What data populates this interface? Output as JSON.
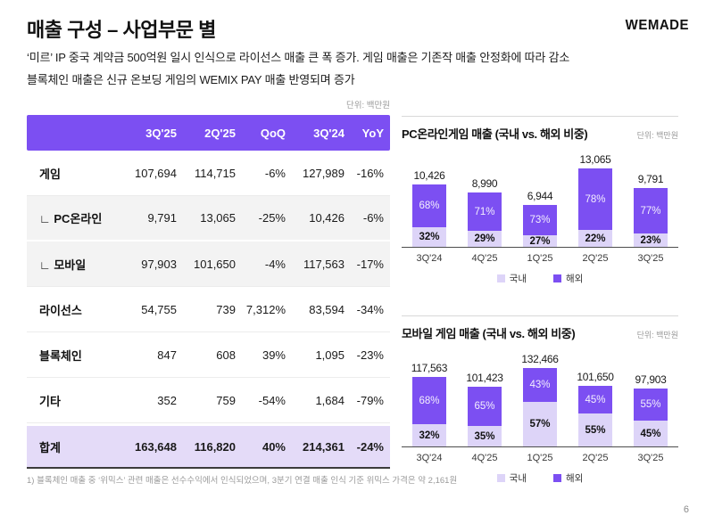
{
  "colors": {
    "accent": "#7C4FF2",
    "accent_light": "#DDD4F8",
    "total_row_bg": "#E4DBF8",
    "sub_row_bg": "#F3F3F3"
  },
  "header": {
    "title": "매출 구성 – 사업부문 별",
    "logo": "WEMADE"
  },
  "summary": {
    "line1": "‘미르’ IP 중국 계약금 500억원 일시 인식으로 라이선스 매출 큰 폭 증가. 게임 매출은 기존작 매출 안정화에 따라 감소",
    "line2": "블록체인 매출은 신규 온보딩 게임의 WEMIX PAY 매출 반영되며 증가"
  },
  "table": {
    "unit": "단위: 백만원",
    "columns": [
      "",
      "3Q'25",
      "2Q'25",
      "QoQ",
      "3Q'24",
      "YoY"
    ],
    "rows": [
      {
        "label": "게임",
        "values": [
          "107,694",
          "114,715",
          "-6%",
          "127,989",
          "-16%"
        ],
        "style": "normal"
      },
      {
        "label": "∟ PC온라인",
        "values": [
          "9,791",
          "13,065",
          "-25%",
          "10,426",
          "-6%"
        ],
        "style": "sub"
      },
      {
        "label": "∟ 모바일",
        "values": [
          "97,903",
          "101,650",
          "-4%",
          "117,563",
          "-17%"
        ],
        "style": "sub2"
      },
      {
        "label": "라이선스",
        "values": [
          "54,755",
          "739",
          "7,312%",
          "83,594",
          "-34%"
        ],
        "style": "normal"
      },
      {
        "label": "블록체인",
        "values": [
          "847",
          "608",
          "39%",
          "1,095",
          "-23%"
        ],
        "style": "normal"
      },
      {
        "label": "기타",
        "values": [
          "352",
          "759",
          "-54%",
          "1,684",
          "-79%"
        ],
        "style": "normal"
      },
      {
        "label": "합계",
        "values": [
          "163,648",
          "116,820",
          "40%",
          "214,361",
          "-24%"
        ],
        "style": "total"
      }
    ]
  },
  "chart_data": [
    {
      "type": "bar",
      "variant": "stacked-percent",
      "title": "PC온라인게임 매출 (국내 vs. 해외 비중)",
      "unit": "단위: 백만원",
      "categories": [
        "3Q'24",
        "4Q'25",
        "1Q'25",
        "2Q'25",
        "3Q'25"
      ],
      "totals": [
        10426,
        8990,
        6944,
        13065,
        9791
      ],
      "total_labels": [
        "10,426",
        "8,990",
        "6,944",
        "13,065",
        "9,791"
      ],
      "series": [
        {
          "name": "국내",
          "pct": [
            32,
            29,
            27,
            22,
            23
          ]
        },
        {
          "name": "해외",
          "pct": [
            68,
            71,
            73,
            78,
            77
          ]
        }
      ],
      "legend": [
        "국내",
        "해외"
      ],
      "legend_position": "bottom-center"
    },
    {
      "type": "bar",
      "variant": "stacked-percent",
      "title": "모바일 게임 매출 (국내 vs. 해외 비중)",
      "unit": "단위: 백만원",
      "categories": [
        "3Q'24",
        "4Q'25",
        "1Q'25",
        "2Q'25",
        "3Q'25"
      ],
      "totals": [
        117563,
        101423,
        132466,
        101650,
        97903
      ],
      "total_labels": [
        "117,563",
        "101,423",
        "132,466",
        "101,650",
        "97,903"
      ],
      "series": [
        {
          "name": "국내",
          "pct": [
            32,
            35,
            57,
            55,
            45
          ]
        },
        {
          "name": "해외",
          "pct": [
            68,
            65,
            43,
            45,
            55
          ]
        }
      ],
      "legend": [
        "국내",
        "해외"
      ],
      "legend_position": "bottom-center"
    }
  ],
  "footnote": "1) 블록체인 매출 중 ‘위믹스’ 관련 매출은 선수수익에서 인식되었으며, 3분기 연결 매출 인식 기준 위믹스 가격은 약 2,161원",
  "page": {
    "number": "6"
  }
}
